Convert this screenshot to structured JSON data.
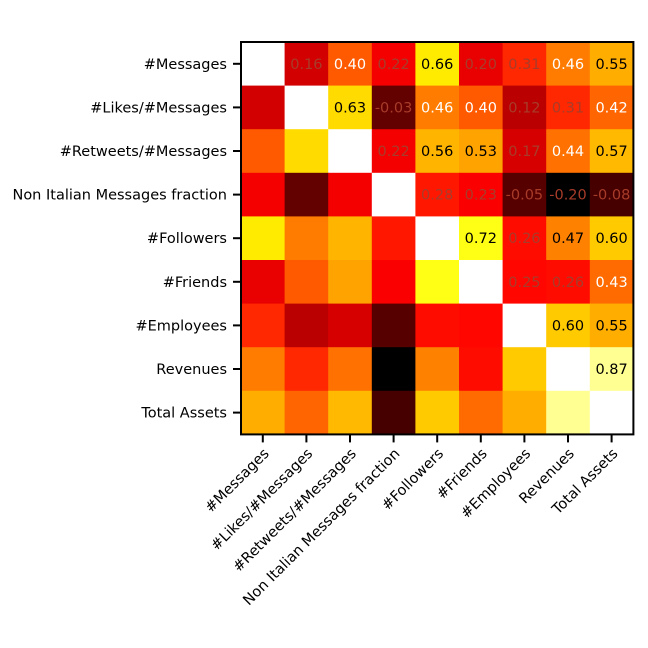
{
  "chart_data": {
    "type": "heatmap",
    "title": "",
    "xlabel": "",
    "ylabel": "",
    "colormap": "hot",
    "value_range": [
      -0.2,
      1.0
    ],
    "diagonal": "blank",
    "annotations": "upper-triangle",
    "labels": [
      "#Messages",
      "#Likes/#Messages",
      "#Retweets/#Messages",
      "Non Italian Messages fraction",
      "#Followers",
      "#Friends",
      "#Employees",
      "Revenues",
      "Total Assets"
    ],
    "matrix": [
      [
        null,
        0.16,
        0.4,
        0.22,
        0.66,
        0.2,
        0.31,
        0.46,
        0.55
      ],
      [
        0.16,
        null,
        0.63,
        -0.03,
        0.46,
        0.4,
        0.12,
        0.31,
        0.42
      ],
      [
        0.4,
        0.63,
        null,
        0.22,
        0.56,
        0.53,
        0.17,
        0.44,
        0.57
      ],
      [
        0.22,
        -0.03,
        0.22,
        null,
        0.28,
        0.23,
        -0.05,
        -0.2,
        -0.08
      ],
      [
        0.66,
        0.46,
        0.56,
        0.28,
        null,
        0.72,
        0.26,
        0.47,
        0.6
      ],
      [
        0.2,
        0.4,
        0.53,
        0.23,
        0.72,
        null,
        0.25,
        0.26,
        0.43
      ],
      [
        0.31,
        0.12,
        0.17,
        -0.05,
        0.26,
        0.25,
        null,
        0.6,
        0.55
      ],
      [
        0.46,
        0.31,
        0.44,
        -0.2,
        0.47,
        0.26,
        0.6,
        null,
        0.87
      ],
      [
        0.55,
        0.42,
        0.57,
        -0.08,
        0.6,
        0.43,
        0.55,
        0.87,
        null
      ]
    ],
    "cell_labels": [
      [
        "",
        "0.16",
        "0.40",
        "0.22",
        "0.66",
        "0.20",
        "0.31",
        "0.46",
        "0.55"
      ],
      [
        "",
        "",
        "0.63",
        "-0.03",
        "0.46",
        "0.40",
        "0.12",
        "0.31",
        "0.42"
      ],
      [
        "",
        "",
        "",
        "0.22",
        "0.56",
        "0.53",
        "0.17",
        "0.44",
        "0.57"
      ],
      [
        "",
        "",
        "",
        "",
        "0.28",
        "0.23",
        "-0.05",
        "-0.20",
        "-0.08"
      ],
      [
        "",
        "",
        "",
        "",
        "",
        "0.72",
        "0.26",
        "0.47",
        "0.60"
      ],
      [
        "",
        "",
        "",
        "",
        "",
        "",
        "0.25",
        "0.26",
        "0.43"
      ],
      [
        "",
        "",
        "",
        "",
        "",
        "",
        "",
        "0.60",
        "0.55"
      ],
      [
        "",
        "",
        "",
        "",
        "",
        "",
        "",
        "",
        "0.87"
      ],
      [
        "",
        "",
        "",
        "",
        "",
        "",
        "",
        "",
        ""
      ]
    ],
    "colors": {
      "diagonal": "#ffffff",
      "frame": "#000000",
      "tick_text": "#000000",
      "label_dark": "#000000",
      "label_light": "#ffffff",
      "label_dim": "#a83c2a"
    }
  }
}
